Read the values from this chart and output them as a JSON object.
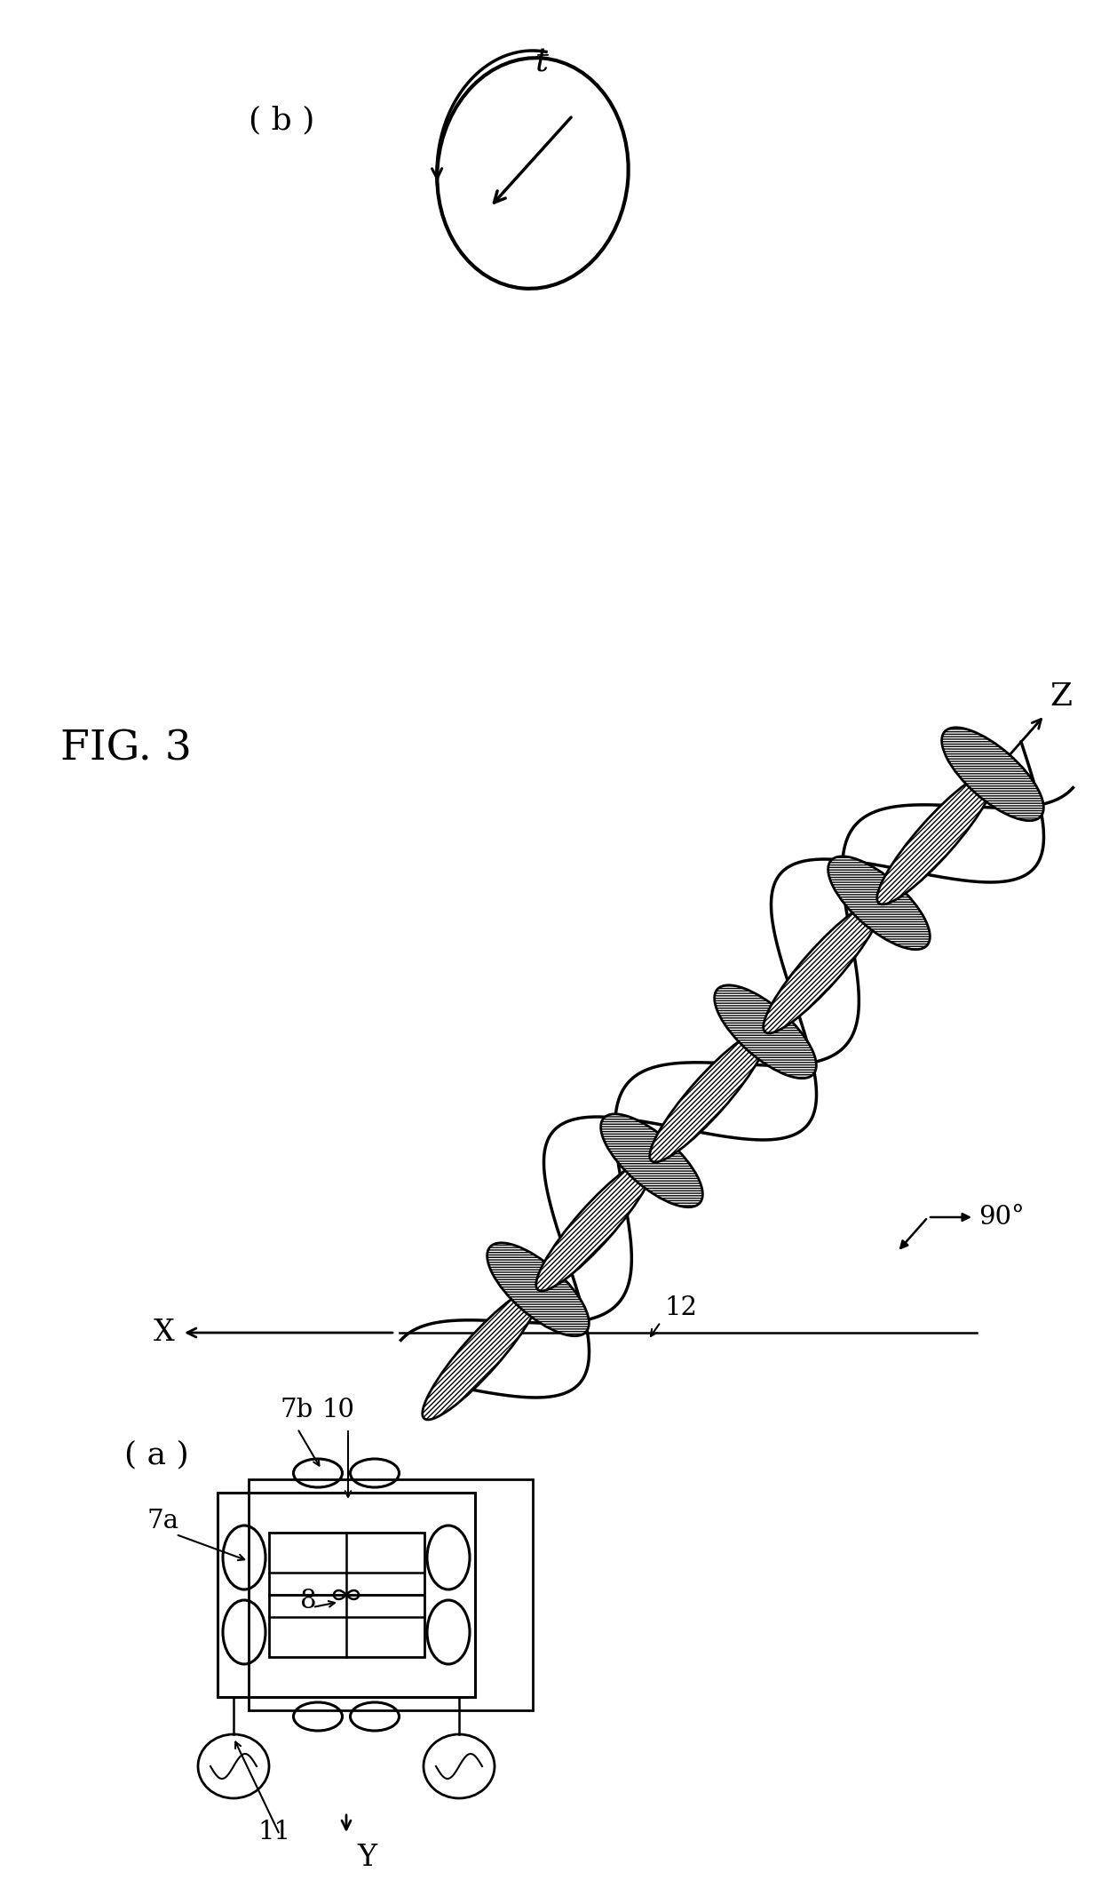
{
  "bg_color": "#ffffff",
  "lc": "#000000",
  "fig_label": "FIG. 3",
  "panel_a": "( a )",
  "panel_b": "( b )"
}
